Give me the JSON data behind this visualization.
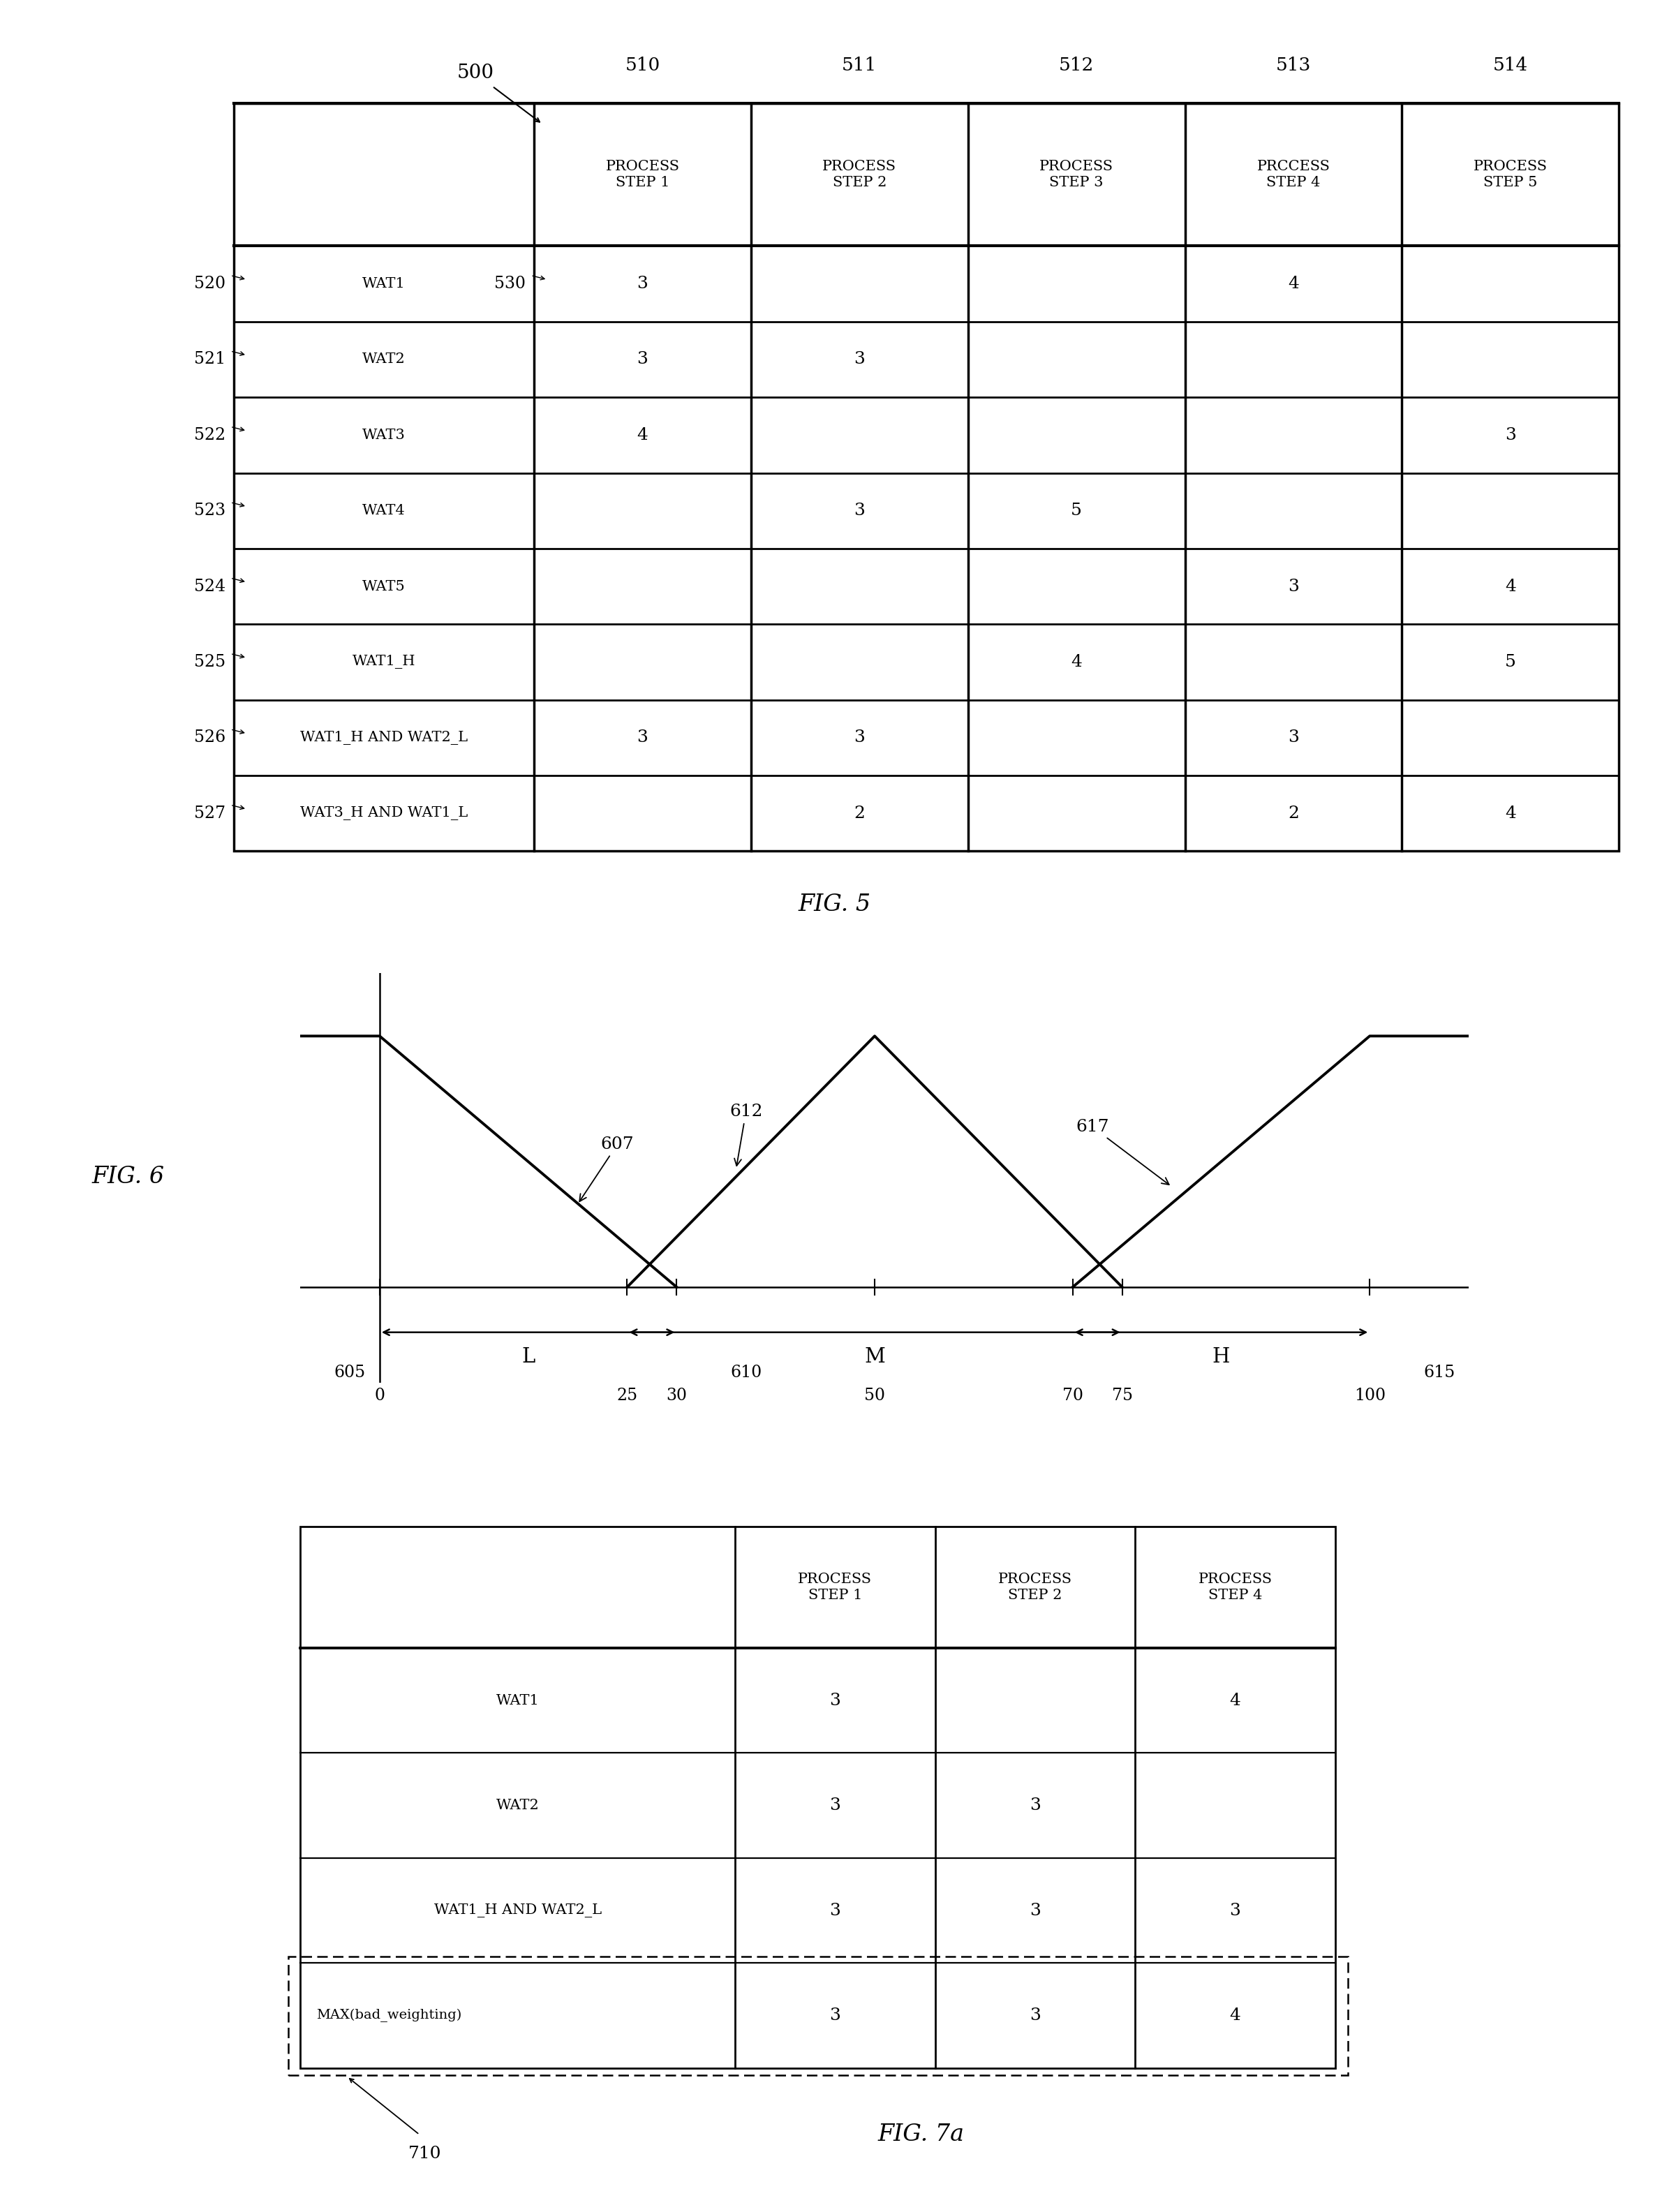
{
  "fig5_title": "FIG. 5",
  "fig5_ref": "500",
  "fig5_col_headers": [
    "PROCESS\nSTEP 1",
    "PROCESS\nSTEP 2",
    "PROCESS\nSTEP 3",
    "PRCCESS\nSTEP 4",
    "PROCESS\nSTEP 5"
  ],
  "fig5_col_refs": [
    "510",
    "511",
    "512",
    "513",
    "514"
  ],
  "fig5_row_labels": [
    "WAT1",
    "WAT2",
    "WAT3",
    "WAT4",
    "WAT5",
    "WAT1_H",
    "WAT1_H AND WAT2_L",
    "WAT3_H AND WAT1_L"
  ],
  "fig5_row_refs": [
    "520",
    "521",
    "522",
    "523",
    "524",
    "525",
    "526",
    "527"
  ],
  "fig5_extra_ref": "530",
  "fig5_data": [
    [
      "3",
      "",
      "",
      "4",
      ""
    ],
    [
      "3",
      "3",
      "",
      "",
      ""
    ],
    [
      "4",
      "",
      "",
      "",
      "3"
    ],
    [
      "",
      "3",
      "5",
      "",
      ""
    ],
    [
      "",
      "",
      "",
      "3",
      "4"
    ],
    [
      "",
      "",
      "4",
      "",
      "5"
    ],
    [
      "3",
      "3",
      "",
      "3",
      ""
    ],
    [
      "",
      "2",
      "",
      "2",
      "4"
    ]
  ],
  "fig6_title": "FIG. 6",
  "fig6_x_ticks": [
    0,
    25,
    30,
    50,
    70,
    75,
    100
  ],
  "fig7a_title": "FIG. 7a",
  "fig7a_ref": "710",
  "fig7a_col_headers": [
    "PROCESS\nSTEP 1",
    "PROCESS\nSTEP 2",
    "PROCESS\nSTEP 4"
  ],
  "fig7a_row_labels": [
    "WAT1",
    "WAT2",
    "WAT1_H AND WAT2_L",
    "MAX(bad_weighting)"
  ],
  "fig7a_data": [
    [
      "3",
      "",
      "4"
    ],
    [
      "3",
      "3",
      ""
    ],
    [
      "3",
      "3",
      "3"
    ],
    [
      "3",
      "3",
      "4"
    ]
  ],
  "bg_color": "#ffffff",
  "text_color": "#000000"
}
